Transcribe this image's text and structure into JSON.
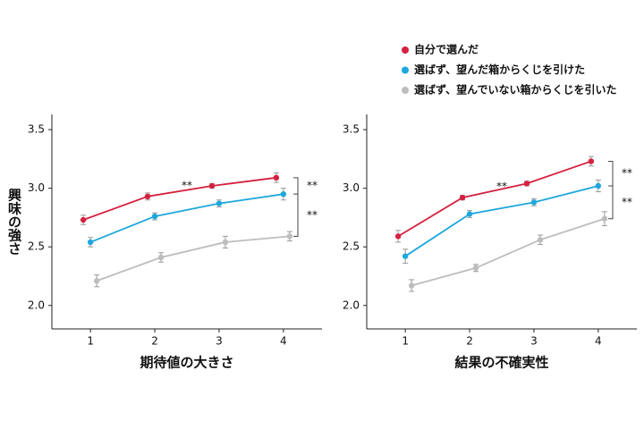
{
  "chart_data": [
    {
      "type": "line",
      "xlabel": "期待値の大きさ",
      "ylabel": "興味の強さ",
      "x": [
        1,
        2,
        3,
        4
      ],
      "xlim": [
        0.4,
        4.6
      ],
      "xticks": [
        1,
        2,
        3,
        4
      ],
      "ylim": [
        1.8,
        3.63
      ],
      "yticks": [
        {
          "value": 2.0,
          "label": "2.0"
        },
        2.5,
        {
          "value": 3.0,
          "label": "3.0"
        },
        3.5
      ],
      "series": [
        {
          "name": "自分で選んだ",
          "color": "#d4213f",
          "values": [
            2.73,
            2.93,
            3.02,
            3.09
          ],
          "errors": [
            0.04,
            0.03,
            0.02,
            0.04
          ]
        },
        {
          "name": "選ばず、望んだ箱からくじを引けた",
          "color": "#1fa7db",
          "values": [
            2.54,
            2.76,
            2.87,
            2.95
          ],
          "errors": [
            0.04,
            0.03,
            0.03,
            0.05
          ]
        },
        {
          "name": "選ばず、望んでいない箱からくじを引いた",
          "color": "#bdbdbd",
          "values": [
            2.21,
            2.41,
            2.54,
            2.59
          ],
          "errors": [
            0.05,
            0.04,
            0.05,
            0.04
          ]
        }
      ],
      "annotations": [
        "**",
        "**",
        "**"
      ]
    },
    {
      "type": "line",
      "xlabel": "結果の不確実性",
      "x": [
        1,
        2,
        3,
        4
      ],
      "xlim": [
        0.4,
        4.6
      ],
      "xticks": [
        1,
        2,
        3,
        4
      ],
      "ylim": [
        1.8,
        3.63
      ],
      "yticks": [
        {
          "value": 2.0,
          "label": "2.0"
        },
        2.5,
        {
          "value": 3.0,
          "label": "3.0"
        },
        3.5
      ],
      "series": [
        {
          "color": "#d4213f",
          "values": [
            2.59,
            2.92,
            3.04,
            3.23
          ],
          "errors": [
            0.05,
            0.02,
            0.02,
            0.04
          ]
        },
        {
          "color": "#1fa7db",
          "values": [
            2.42,
            2.78,
            2.88,
            3.02
          ],
          "errors": [
            0.06,
            0.03,
            0.03,
            0.05
          ]
        },
        {
          "color": "#bdbdbd",
          "values": [
            2.17,
            2.32,
            2.56,
            2.74
          ],
          "errors": [
            0.05,
            0.03,
            0.04,
            0.06
          ]
        }
      ],
      "annotations": [
        "**",
        "**",
        "**"
      ]
    }
  ]
}
